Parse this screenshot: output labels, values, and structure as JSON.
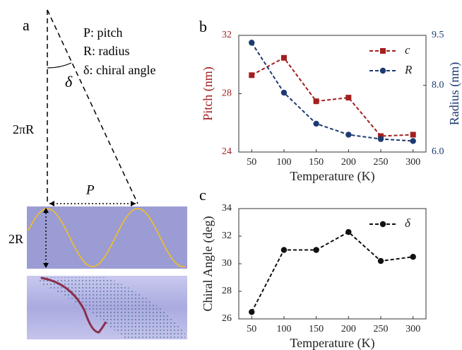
{
  "diagram": {
    "panel": "a",
    "legend": [
      "P: pitch",
      "R: radius",
      "δ: chiral angle"
    ],
    "angle_label": "δ",
    "height_label": "2πR",
    "pitch_label": "P",
    "diameter_label": "2R"
  },
  "chart_data": [
    {
      "type": "line",
      "label": "b",
      "xlabel": "Temperature (K)",
      "ylabel": "Pitch (nm)",
      "y2label": "Radius (nm)",
      "x": [
        50,
        100,
        150,
        200,
        250,
        300
      ],
      "xlim": [
        30,
        320
      ],
      "xticks": [
        50,
        100,
        150,
        200,
        250,
        300
      ],
      "ylim": [
        24,
        32
      ],
      "yticks": [
        24,
        28,
        32
      ],
      "y2lim": [
        6,
        9.5
      ],
      "y2ticks": [
        {
          "value": 6,
          "label": "6.0"
        },
        {
          "value": 8,
          "label": "8.0"
        },
        9.5
      ],
      "legend": "upper right",
      "series": [
        {
          "name": "c",
          "color": "#a31f1f",
          "marker": "square",
          "values": [
            29.27,
            30.46,
            27.48,
            27.73,
            25.09,
            25.19
          ]
        },
        {
          "name": "R",
          "color": "#1d3b72",
          "marker": "circle",
          "axis": "y2",
          "values": [
            9.28,
            7.78,
            6.85,
            6.52,
            6.39,
            6.33
          ]
        }
      ]
    },
    {
      "type": "line",
      "label": "c",
      "xlabel": "Temperature (K)",
      "ylabel": "Chiral Angle (deg)",
      "x": [
        50,
        100,
        150,
        200,
        250,
        300
      ],
      "xlim": [
        30,
        320
      ],
      "xticks": [
        50,
        100,
        150,
        200,
        250,
        300
      ],
      "ylim": [
        26,
        34
      ],
      "yticks": [
        26,
        28,
        30,
        32,
        34
      ],
      "legend": "upper right",
      "series": [
        {
          "name": "δ",
          "color": "#111111",
          "marker": "circle",
          "values": [
            26.5,
            31.0,
            31.0,
            32.3,
            30.2,
            30.5
          ]
        }
      ]
    }
  ]
}
